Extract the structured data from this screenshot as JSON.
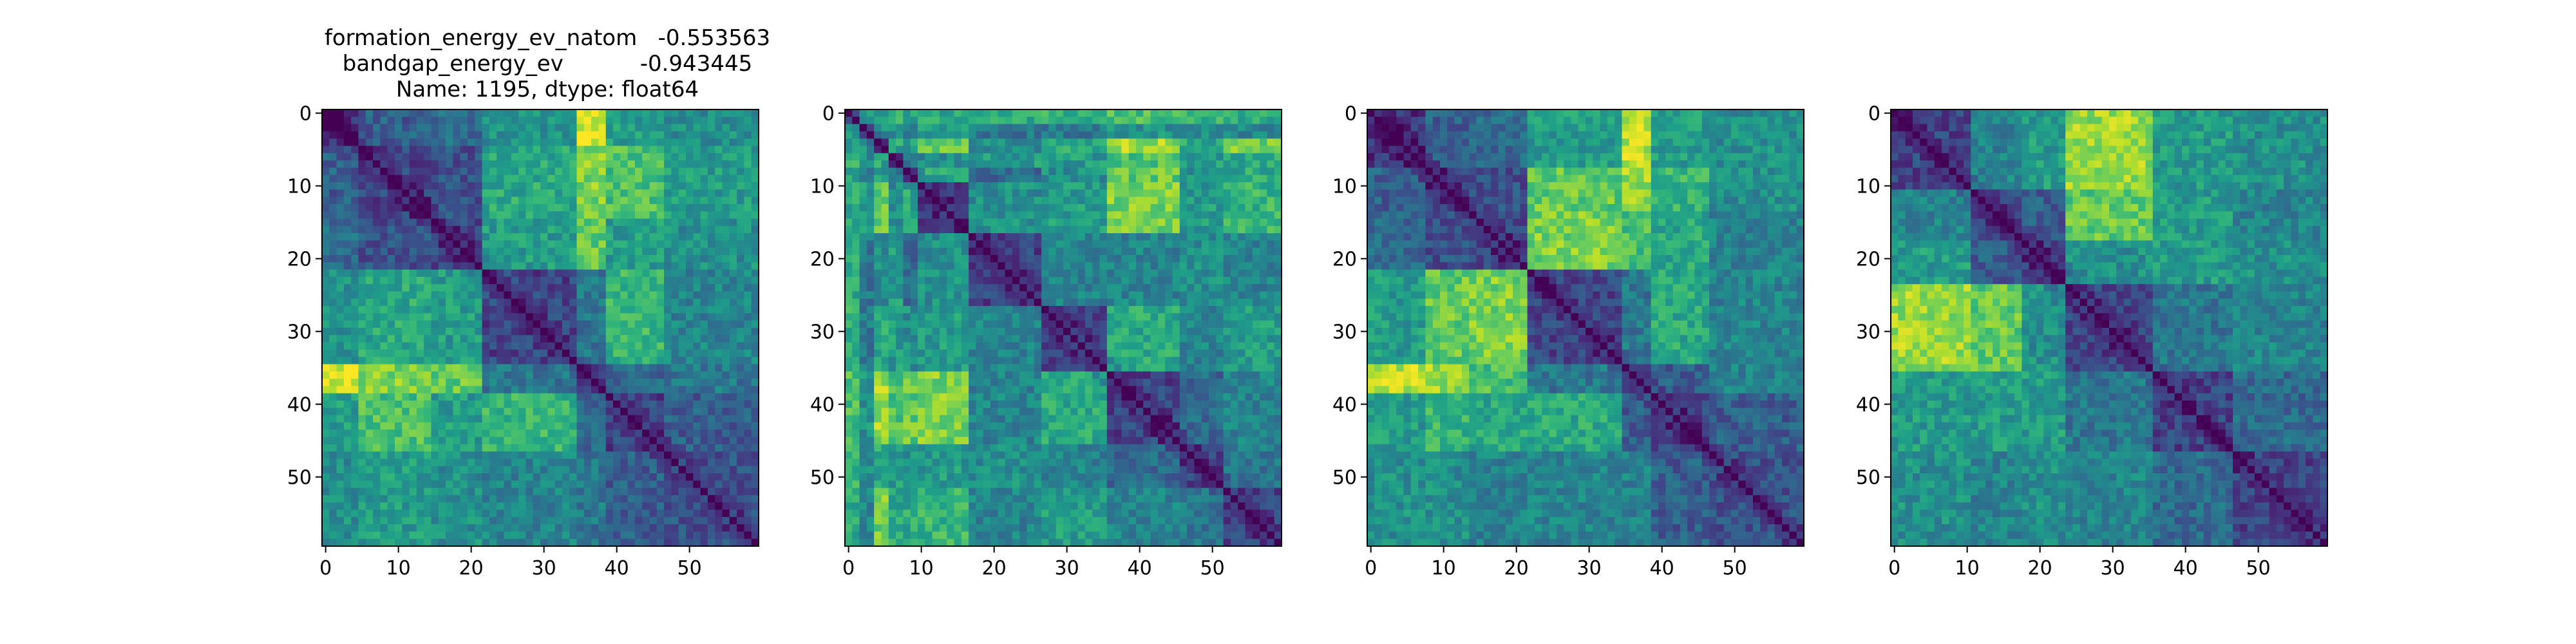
{
  "figure": {
    "title_lines": [
      "formation_energy_ev_natom   -0.553563",
      "bandgap_energy_ev           -0.943445",
      "Name: 1195, dtype: float64"
    ]
  },
  "colormap": [
    "#440154",
    "#482878",
    "#3e4989",
    "#31688e",
    "#26828e",
    "#1f9e89",
    "#35b779",
    "#6ece58",
    "#b5de2b",
    "#fde725"
  ],
  "chart_data": [
    {
      "type": "heatmap",
      "title": "formation_energy_ev_natom   -0.553563\nbandgap_energy_ev           -0.943445\nName: 1195, dtype: float64",
      "size": 60,
      "x_ticks": [
        0,
        10,
        20,
        30,
        40,
        50
      ],
      "y_ticks": [
        0,
        10,
        20,
        30,
        40,
        50
      ],
      "cmap": "viridis",
      "diagonal": 0.0,
      "block_boundaries": [
        0,
        5,
        15,
        22,
        35,
        39,
        47,
        60
      ],
      "block_values": [
        [
          0.15,
          0.3,
          0.35,
          0.5,
          0.95,
          0.55,
          0.5
        ],
        [
          0.3,
          0.2,
          0.25,
          0.6,
          0.8,
          0.7,
          0.55
        ],
        [
          0.35,
          0.25,
          0.2,
          0.55,
          0.75,
          0.55,
          0.5
        ],
        [
          0.5,
          0.6,
          0.55,
          0.2,
          0.4,
          0.65,
          0.45
        ],
        [
          0.95,
          0.8,
          0.75,
          0.4,
          0.2,
          0.35,
          0.4
        ],
        [
          0.55,
          0.7,
          0.55,
          0.65,
          0.35,
          0.2,
          0.3
        ],
        [
          0.5,
          0.55,
          0.5,
          0.45,
          0.4,
          0.3,
          0.25
        ]
      ]
    },
    {
      "type": "heatmap",
      "title": "",
      "size": 60,
      "x_ticks": [
        0,
        10,
        20,
        30,
        40,
        50
      ],
      "y_ticks": [
        0,
        10,
        20,
        30,
        40,
        50
      ],
      "cmap": "viridis",
      "diagonal": 0.0,
      "block_boundaries": [
        0,
        2,
        4,
        6,
        8,
        10,
        17,
        27,
        36,
        46,
        52,
        60
      ],
      "block_values": [
        [
          0.2,
          0.6,
          0.5,
          0.7,
          0.6,
          0.6,
          0.6,
          0.65,
          0.7,
          0.65,
          0.6
        ],
        [
          0.6,
          0.2,
          0.5,
          0.5,
          0.4,
          0.55,
          0.4,
          0.4,
          0.5,
          0.5,
          0.45
        ],
        [
          0.5,
          0.5,
          0.2,
          0.6,
          0.55,
          0.75,
          0.5,
          0.6,
          0.85,
          0.6,
          0.8
        ],
        [
          0.7,
          0.5,
          0.6,
          0.25,
          0.45,
          0.5,
          0.55,
          0.55,
          0.7,
          0.55,
          0.6
        ],
        [
          0.6,
          0.4,
          0.55,
          0.45,
          0.25,
          0.6,
          0.35,
          0.5,
          0.75,
          0.5,
          0.6
        ],
        [
          0.6,
          0.55,
          0.75,
          0.5,
          0.6,
          0.2,
          0.5,
          0.55,
          0.8,
          0.55,
          0.65
        ],
        [
          0.6,
          0.4,
          0.5,
          0.55,
          0.35,
          0.5,
          0.2,
          0.45,
          0.45,
          0.5,
          0.45
        ],
        [
          0.65,
          0.4,
          0.6,
          0.55,
          0.5,
          0.55,
          0.45,
          0.2,
          0.6,
          0.45,
          0.55
        ],
        [
          0.7,
          0.5,
          0.85,
          0.7,
          0.75,
          0.8,
          0.45,
          0.6,
          0.2,
          0.35,
          0.45
        ],
        [
          0.65,
          0.5,
          0.6,
          0.55,
          0.5,
          0.55,
          0.5,
          0.45,
          0.35,
          0.2,
          0.4
        ],
        [
          0.6,
          0.45,
          0.8,
          0.6,
          0.6,
          0.65,
          0.45,
          0.55,
          0.45,
          0.4,
          0.2
        ]
      ]
    },
    {
      "type": "heatmap",
      "title": "",
      "size": 60,
      "x_ticks": [
        0,
        10,
        20,
        30,
        40,
        50
      ],
      "y_ticks": [
        0,
        10,
        20,
        30,
        40,
        50
      ],
      "cmap": "viridis",
      "diagonal": 0.0,
      "block_boundaries": [
        0,
        8,
        14,
        22,
        35,
        39,
        47,
        60
      ],
      "block_values": [
        [
          0.15,
          0.3,
          0.35,
          0.55,
          0.9,
          0.55,
          0.5
        ],
        [
          0.3,
          0.2,
          0.25,
          0.75,
          0.85,
          0.65,
          0.5
        ],
        [
          0.35,
          0.25,
          0.2,
          0.8,
          0.7,
          0.6,
          0.45
        ],
        [
          0.55,
          0.75,
          0.8,
          0.2,
          0.4,
          0.6,
          0.45
        ],
        [
          0.9,
          0.85,
          0.7,
          0.4,
          0.2,
          0.3,
          0.45
        ],
        [
          0.55,
          0.65,
          0.6,
          0.6,
          0.3,
          0.2,
          0.3
        ],
        [
          0.5,
          0.5,
          0.45,
          0.45,
          0.45,
          0.3,
          0.25
        ]
      ]
    },
    {
      "type": "heatmap",
      "title": "",
      "size": 60,
      "x_ticks": [
        0,
        10,
        20,
        30,
        40,
        50
      ],
      "y_ticks": [
        0,
        10,
        20,
        30,
        40,
        50
      ],
      "cmap": "viridis",
      "diagonal": 0.0,
      "block_boundaries": [
        0,
        11,
        18,
        24,
        36,
        47,
        60
      ],
      "block_values": [
        [
          0.2,
          0.45,
          0.55,
          0.85,
          0.55,
          0.5
        ],
        [
          0.45,
          0.2,
          0.3,
          0.75,
          0.55,
          0.45
        ],
        [
          0.55,
          0.3,
          0.2,
          0.5,
          0.55,
          0.5
        ],
        [
          0.85,
          0.75,
          0.5,
          0.2,
          0.4,
          0.45
        ],
        [
          0.55,
          0.55,
          0.55,
          0.4,
          0.2,
          0.35
        ],
        [
          0.5,
          0.45,
          0.5,
          0.45,
          0.35,
          0.2
        ]
      ]
    }
  ]
}
